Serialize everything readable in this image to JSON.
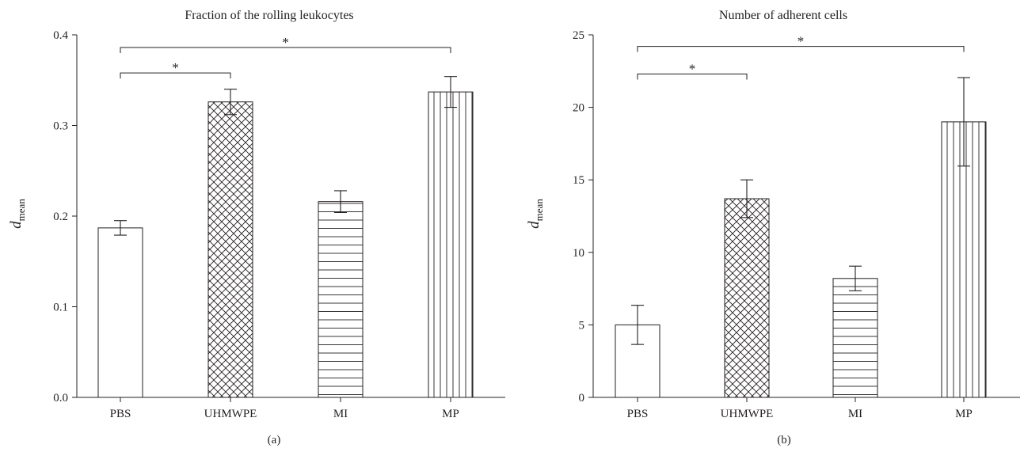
{
  "chart_data": [
    {
      "type": "bar",
      "title": "Fraction of the rolling leukocytes",
      "panel_label": "(a)",
      "ylabel": {
        "main": "d",
        "subscript": "mean"
      },
      "categories": [
        "PBS",
        "UHMWPE",
        "MI",
        "MP"
      ],
      "values": [
        0.187,
        0.326,
        0.216,
        0.337
      ],
      "errors": [
        0.008,
        0.014,
        0.012,
        0.017
      ],
      "patterns": [
        "none",
        "crosshatch",
        "horizontal",
        "vertical"
      ],
      "ylim": [
        0,
        0.4
      ],
      "yticks": [
        0,
        0.1,
        0.2,
        0.3,
        0.4
      ],
      "ytick_labels": [
        "0.0",
        "0.1",
        "0.2",
        "0.3",
        "0.4"
      ],
      "grid": false,
      "significance": [
        {
          "from": "PBS",
          "to": "UHMWPE",
          "y": 0.358,
          "label": "*"
        },
        {
          "from": "PBS",
          "to": "MP",
          "y": 0.386,
          "label": "*"
        }
      ]
    },
    {
      "type": "bar",
      "title": "Number of adherent cells",
      "panel_label": "(b)",
      "ylabel": {
        "main": "d",
        "subscript": "mean"
      },
      "categories": [
        "PBS",
        "UHMWPE",
        "MI",
        "MP"
      ],
      "values": [
        5.0,
        13.7,
        8.2,
        19.0
      ],
      "errors": [
        1.35,
        1.3,
        0.85,
        3.05
      ],
      "patterns": [
        "none",
        "crosshatch",
        "horizontal",
        "vertical"
      ],
      "ylim": [
        0,
        25
      ],
      "yticks": [
        0,
        5,
        10,
        15,
        20,
        25
      ],
      "ytick_labels": [
        "0",
        "5",
        "10",
        "15",
        "20",
        "25"
      ],
      "grid": false,
      "significance": [
        {
          "from": "PBS",
          "to": "UHMWPE",
          "y": 22.3,
          "label": "*"
        },
        {
          "from": "PBS",
          "to": "MP",
          "y": 24.2,
          "label": "*"
        }
      ]
    }
  ]
}
